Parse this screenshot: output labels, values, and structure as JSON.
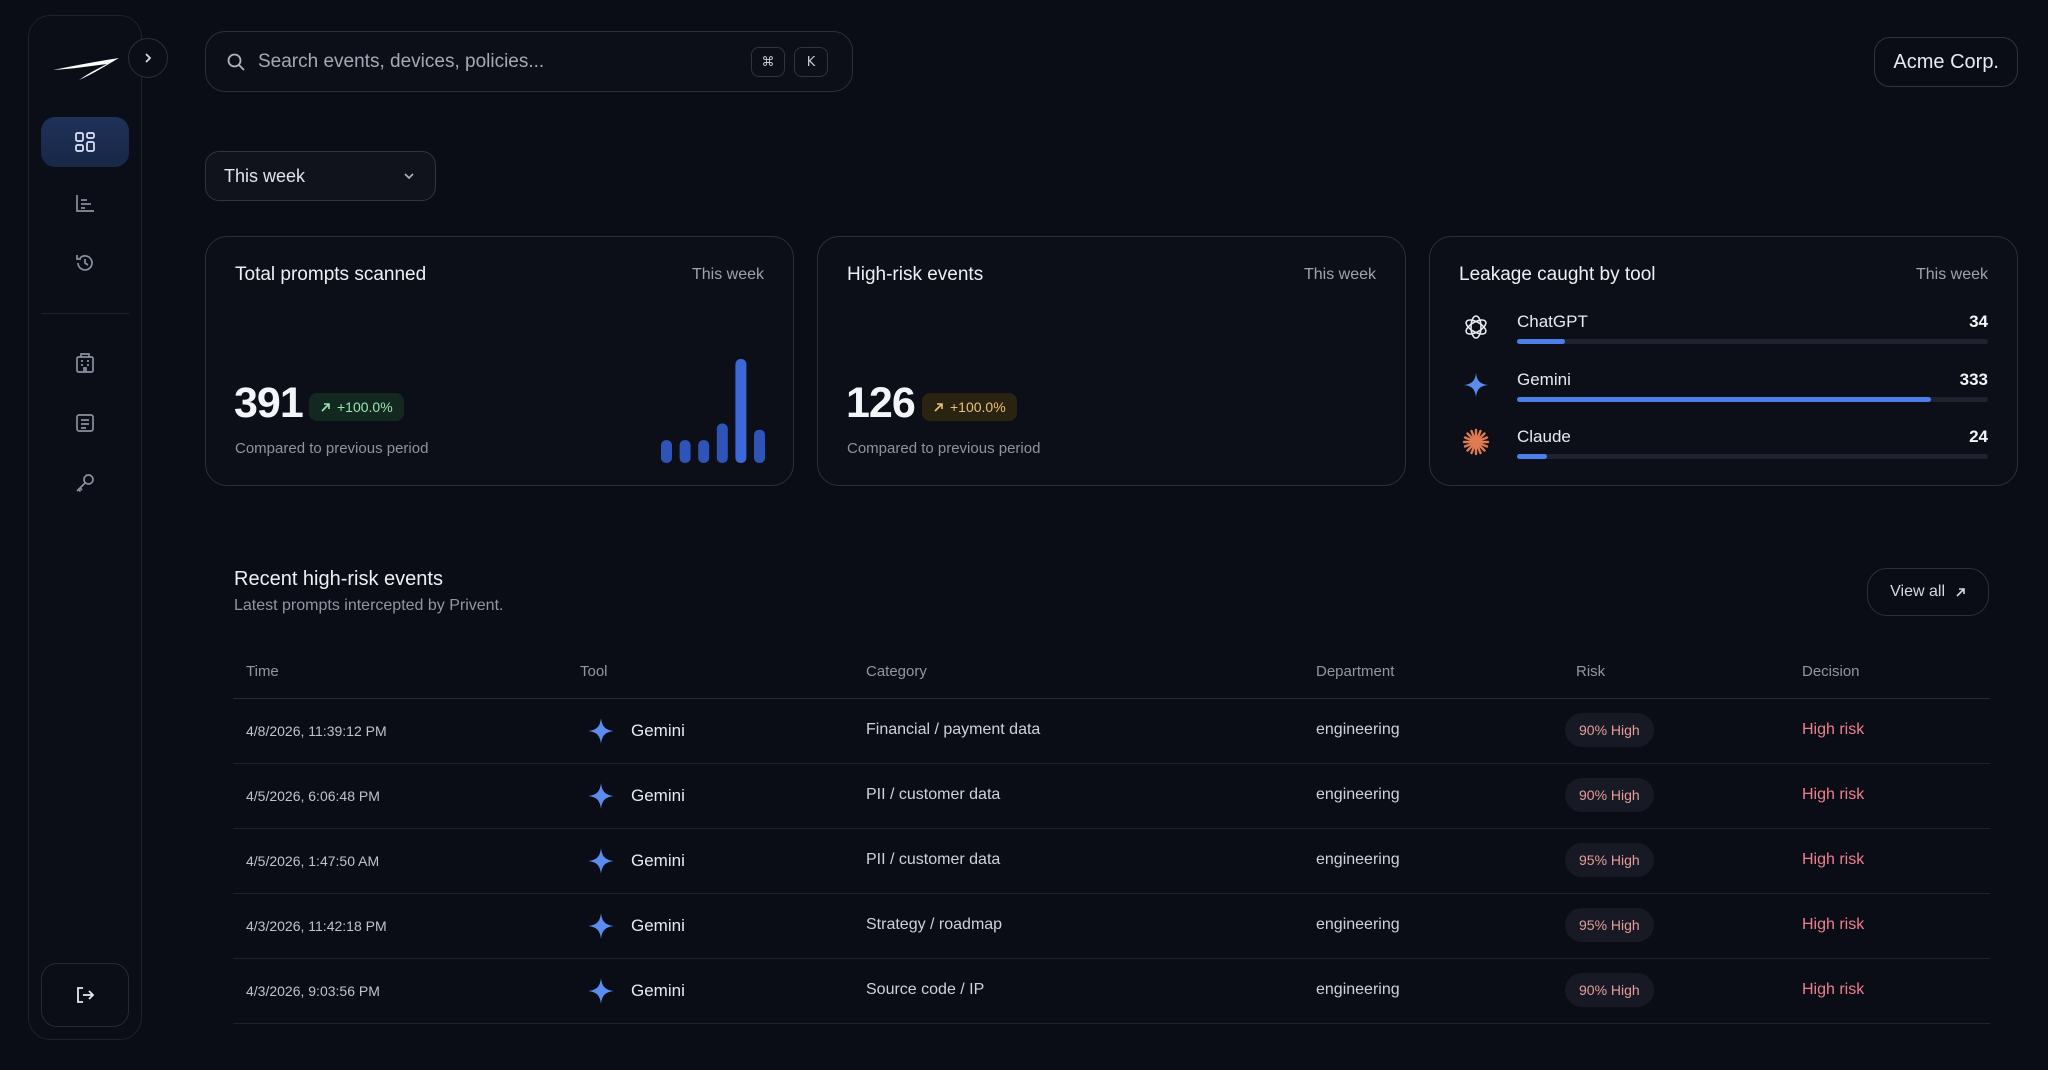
{
  "search": {
    "placeholder": "Search events, devices, policies...",
    "kbd_cmd": "⌘",
    "kbd_k": "K"
  },
  "org": {
    "name": "Acme Corp."
  },
  "period": {
    "selected": "This week"
  },
  "nav": {
    "items": [
      {
        "icon": "dashboard-icon",
        "active": true
      },
      {
        "icon": "analytics-icon",
        "active": false
      },
      {
        "icon": "history-icon",
        "active": false
      },
      {
        "icon": "building-icon",
        "active": false
      },
      {
        "icon": "report-icon",
        "active": false
      },
      {
        "icon": "key-icon",
        "active": false
      }
    ]
  },
  "cards": {
    "prompts": {
      "title": "Total prompts scanned",
      "period": "This week",
      "value": "391",
      "delta": "+100.0%",
      "compare": "Compared to previous period"
    },
    "highrisk": {
      "title": "High-risk events",
      "period": "This week",
      "value": "126",
      "delta": "+100.0%",
      "compare": "Compared to previous period"
    },
    "leakage": {
      "title": "Leakage caught by tool",
      "period": "This week",
      "tools": [
        {
          "name": "ChatGPT",
          "count": "34",
          "fraction": 0.102
        },
        {
          "name": "Gemini",
          "count": "333",
          "fraction": 0.88
        },
        {
          "name": "Claude",
          "count": "24",
          "fraction": 0.064
        }
      ]
    }
  },
  "chart_data": {
    "type": "bar",
    "categories": [
      "1",
      "2",
      "3",
      "4",
      "5",
      "6"
    ],
    "values": [
      22,
      22,
      22,
      38,
      100,
      32
    ],
    "title": "",
    "xlabel": "",
    "ylabel": ""
  },
  "recent": {
    "title": "Recent high-risk events",
    "subtitle": "Latest prompts intercepted by Privent.",
    "view_all": "View all",
    "columns": [
      "Time",
      "Tool",
      "Category",
      "Department",
      "Risk",
      "Decision"
    ],
    "rows": [
      {
        "time": "4/8/2026, 11:39:12 PM",
        "tool": "Gemini",
        "category": "Financial / payment data",
        "department": "engineering",
        "risk": "90% High",
        "decision": "High risk"
      },
      {
        "time": "4/5/2026, 6:06:48 PM",
        "tool": "Gemini",
        "category": "PII / customer data",
        "department": "engineering",
        "risk": "90% High",
        "decision": "High risk"
      },
      {
        "time": "4/5/2026, 1:47:50 AM",
        "tool": "Gemini",
        "category": "PII / customer data",
        "department": "engineering",
        "risk": "95% High",
        "decision": "High risk"
      },
      {
        "time": "4/3/2026, 11:42:18 PM",
        "tool": "Gemini",
        "category": "Strategy / roadmap",
        "department": "engineering",
        "risk": "95% High",
        "decision": "High risk"
      },
      {
        "time": "4/3/2026, 9:03:56 PM",
        "tool": "Gemini",
        "category": "Source code / IP",
        "department": "engineering",
        "risk": "90% High",
        "decision": "High risk"
      }
    ]
  },
  "colors": {
    "accent": "#4d7fe8",
    "risk": "#ef7f8f",
    "positive": "#9be3b3",
    "warning": "#e6c27a"
  }
}
